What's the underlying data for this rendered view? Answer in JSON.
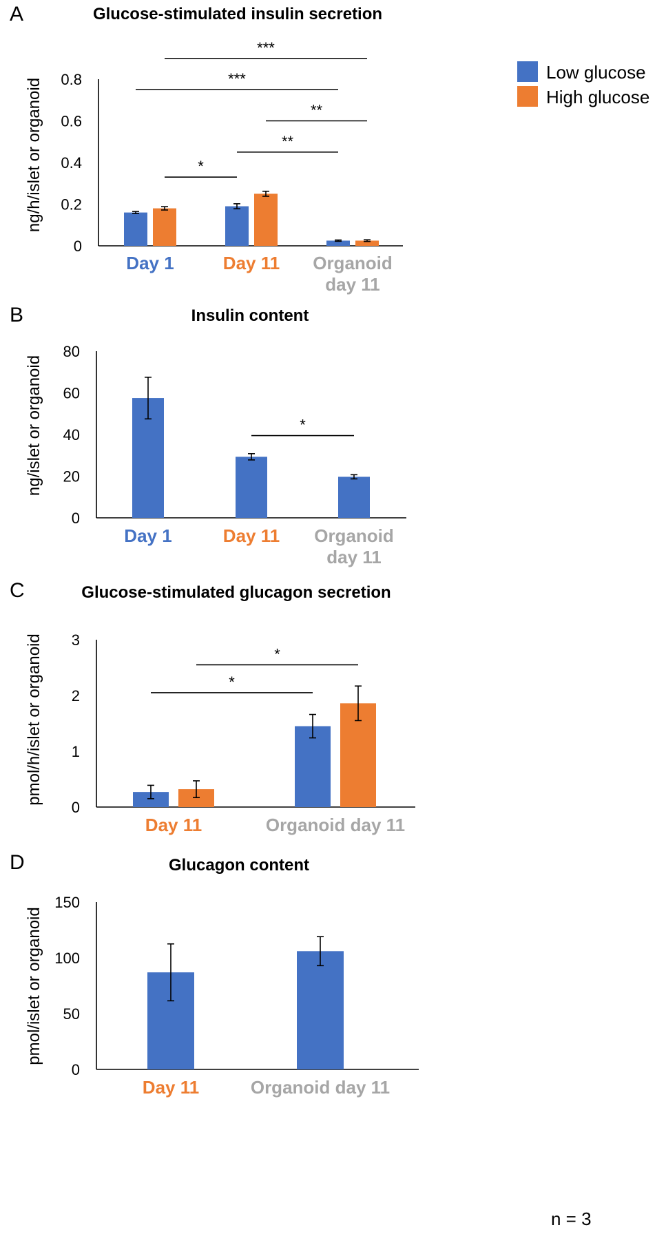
{
  "colors": {
    "low": "#4472C4",
    "high": "#ED7D31",
    "day1": "#4472C4",
    "day11": "#ED7D31",
    "organoid": "#A6A6A6",
    "axis": "#000000"
  },
  "footnote": "n = 3",
  "chart_data": [
    {
      "panel": "A",
      "type": "bar",
      "title": "Glucose-stimulated insulin secretion",
      "ylabel": "ng/h/islet or organoid",
      "ylim": [
        0,
        0.8
      ],
      "yticks": [
        0,
        0.2,
        0.4,
        0.6,
        0.8
      ],
      "ytick_labels": [
        "0",
        "0.2",
        "0.4",
        "0.6",
        "0.8"
      ],
      "categories": [
        "Day 1",
        "Day 11",
        "Organoid day 11"
      ],
      "category_lines": [
        [
          "Day 1"
        ],
        [
          "Day 11"
        ],
        [
          "Organoid",
          "day 11"
        ]
      ],
      "category_colors": [
        "day1",
        "day11",
        "organoid"
      ],
      "legend": {
        "position": "top-right",
        "entries": [
          {
            "name": "Low glucose",
            "color": "low"
          },
          {
            "name": "High glucose",
            "color": "high"
          }
        ]
      },
      "series": [
        {
          "name": "Low glucose",
          "color": "low",
          "values": [
            0.16,
            0.19,
            0.025
          ],
          "errors": [
            0.005,
            0.012,
            0.003
          ]
        },
        {
          "name": "High glucose",
          "color": "high",
          "values": [
            0.18,
            0.25,
            0.025
          ],
          "errors": [
            0.008,
            0.012,
            0.004
          ]
        }
      ],
      "significance": [
        {
          "from": [
            0,
            1
          ],
          "to": [
            1,
            0
          ],
          "label": "*",
          "y": 0.33
        },
        {
          "from": [
            1,
            0
          ],
          "to": [
            2,
            0
          ],
          "label": "**",
          "y": 0.45
        },
        {
          "from": [
            1,
            1
          ],
          "to": [
            2,
            1
          ],
          "label": "**",
          "y": 0.6
        },
        {
          "from": [
            0,
            0
          ],
          "to": [
            2,
            0
          ],
          "label": "***",
          "y": 0.75
        },
        {
          "from": [
            0,
            1
          ],
          "to": [
            2,
            1
          ],
          "label": "***",
          "y": 0.9
        }
      ]
    },
    {
      "panel": "B",
      "type": "bar",
      "title": "Insulin content",
      "ylabel": "ng/islet or organoid",
      "ylim": [
        0,
        80
      ],
      "yticks": [
        0,
        20,
        40,
        60,
        80
      ],
      "ytick_labels": [
        "0",
        "20",
        "40",
        "60",
        "80"
      ],
      "categories": [
        "Day 1",
        "Day 11",
        "Organoid day 11"
      ],
      "category_lines": [
        [
          "Day 1"
        ],
        [
          "Day 11"
        ],
        [
          "Organoid",
          "day 11"
        ]
      ],
      "category_colors": [
        "day1",
        "day11",
        "organoid"
      ],
      "series": [
        {
          "name": "Insulin content",
          "color": "low",
          "values": [
            57.5,
            29.3,
            19.7
          ],
          "errors": [
            10,
            1.5,
            1
          ]
        }
      ],
      "significance": [
        {
          "from": [
            1,
            0
          ],
          "to": [
            2,
            0
          ],
          "label": "*",
          "y": 39.5
        }
      ]
    },
    {
      "panel": "C",
      "type": "bar",
      "title": "Glucose-stimulated glucagon secretion",
      "ylabel": "pmol/h/islet or organoid",
      "ylim": [
        0,
        3
      ],
      "yticks": [
        0,
        1,
        2,
        3
      ],
      "ytick_labels": [
        "0",
        "1",
        "2",
        "3"
      ],
      "categories": [
        "Day 11",
        "Organoid day 11"
      ],
      "category_lines": [
        [
          "Day 11"
        ],
        [
          "Organoid day 11"
        ]
      ],
      "category_colors": [
        "day11",
        "organoid"
      ],
      "series": [
        {
          "name": "Low glucose",
          "color": "low",
          "values": [
            0.27,
            1.45
          ],
          "errors": [
            0.12,
            0.21
          ]
        },
        {
          "name": "High glucose",
          "color": "high",
          "values": [
            0.32,
            1.86
          ],
          "errors": [
            0.15,
            0.31
          ]
        }
      ],
      "significance": [
        {
          "from": [
            0,
            0
          ],
          "to": [
            1,
            0
          ],
          "label": "*",
          "y": 2.05
        },
        {
          "from": [
            0,
            1
          ],
          "to": [
            1,
            1
          ],
          "label": "*",
          "y": 2.55
        }
      ]
    },
    {
      "panel": "D",
      "type": "bar",
      "title": "Glucagon content",
      "ylabel": "pmol/islet or organoid",
      "ylim": [
        0,
        150
      ],
      "yticks": [
        0,
        50,
        100,
        150
      ],
      "ytick_labels": [
        "0",
        "50",
        "100",
        "150"
      ],
      "categories": [
        "Day 11",
        "Organoid day 11"
      ],
      "category_lines": [
        [
          "Day 11"
        ],
        [
          "Organoid day 11"
        ]
      ],
      "category_colors": [
        "day11",
        "organoid"
      ],
      "series": [
        {
          "name": "Glucagon content",
          "color": "low",
          "values": [
            87,
            106
          ],
          "errors": [
            25.5,
            13
          ]
        }
      ],
      "significance": []
    }
  ]
}
